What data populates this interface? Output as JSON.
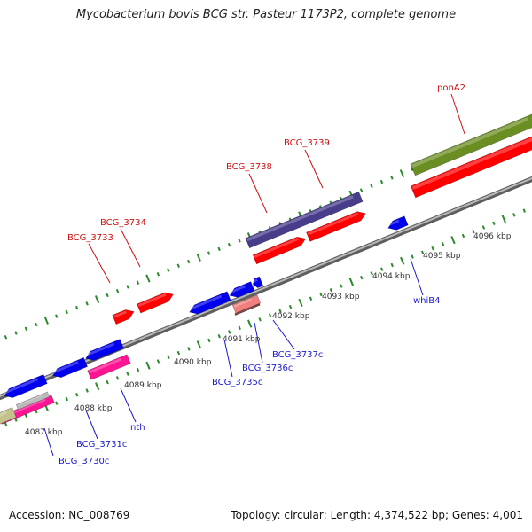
{
  "title": "Mycobacterium bovis BCG str. Pasteur 1173P2, complete genome",
  "footer": {
    "accession": "Accession: NC_008769",
    "topology": "Topology: circular; Length: 4,374,522 bp; Genes: 4,001"
  },
  "colors": {
    "backbone": "#8c8c8c",
    "tick": "#2b8a2b",
    "forward_label": "#cc1111",
    "reverse_label": "#1a1acc",
    "cds": "#ff0000",
    "cds_reverse": "#0000ee",
    "rna": "#6b8e23",
    "pseudo": "#f08080",
    "misc": "#ff1493",
    "tandem": "#483d8b"
  },
  "kbp_ticks": [
    "4087 kbp",
    "4088 kbp",
    "4089 kbp",
    "4090 kbp",
    "4091 kbp",
    "4092 kbp",
    "4093 kbp",
    "4094 kbp",
    "4095 kbp",
    "4096 kbp"
  ],
  "forward_labels": [
    "BCG_3733",
    "BCG_3734",
    "BCG_3738",
    "BCG_3739",
    "ponA2"
  ],
  "reverse_labels": [
    "BCG_3730c",
    "BCG_3731c",
    "nth",
    "BCG_3735c",
    "BCG_3736c",
    "BCG_3737c",
    "whiB4"
  ]
}
